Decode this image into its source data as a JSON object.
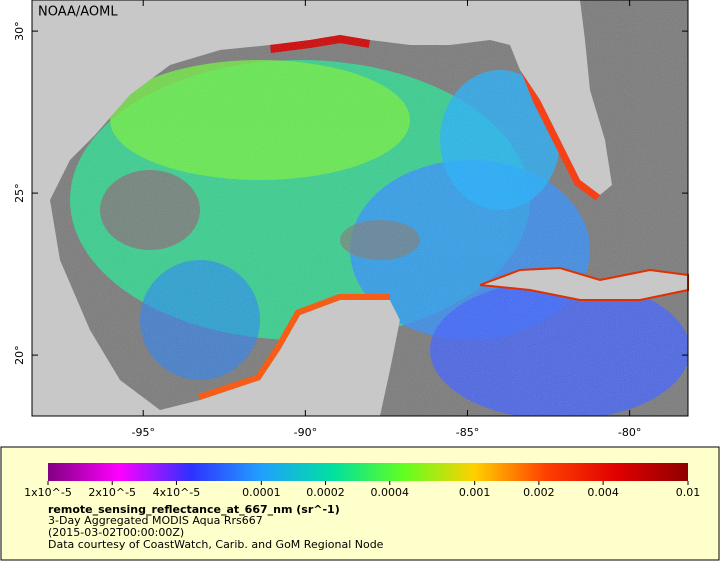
{
  "map": {
    "attribution": "NOAA/AOML",
    "xlim": [
      -98.43,
      -78.2
    ],
    "ylim": [
      18.12,
      30.96
    ],
    "xticks": [
      {
        "value": -95,
        "label": "-95°"
      },
      {
        "value": -90,
        "label": "-90°"
      },
      {
        "value": -85,
        "label": "-85°"
      },
      {
        "value": -80,
        "label": "-80°"
      }
    ],
    "yticks": [
      {
        "value": 30,
        "label": "30°"
      },
      {
        "value": 25,
        "label": "25°"
      },
      {
        "value": 20,
        "label": "20°"
      }
    ]
  },
  "colorbar": {
    "scale": "log",
    "lim": [
      1e-05,
      0.01
    ],
    "ticks": [
      {
        "value": 1e-05,
        "label": "1x10^-5"
      },
      {
        "value": 2e-05,
        "label": "2x10^-5"
      },
      {
        "value": 4e-05,
        "label": "4x10^-5"
      },
      0.0001,
      0.0002,
      0.0004,
      0.001,
      0.002,
      0.004,
      0.01
    ],
    "colors": [
      "#800080",
      "#ff00ff",
      "#3030ff",
      "#20a0ff",
      "#00e0a0",
      "#60ff20",
      "#ffd000",
      "#ff4000",
      "#e00000",
      "#900000"
    ]
  },
  "caption": {
    "variable": "remote_sensing_reflectance_at_667_nm (sr^-1)",
    "lines": [
      "3-Day Aggregated MODIS Aqua Rrs667",
      "(2015-03-02T00:00:00Z)",
      "Data courtesy of CoastWatch, Carib. and GoM Regional Node"
    ]
  }
}
